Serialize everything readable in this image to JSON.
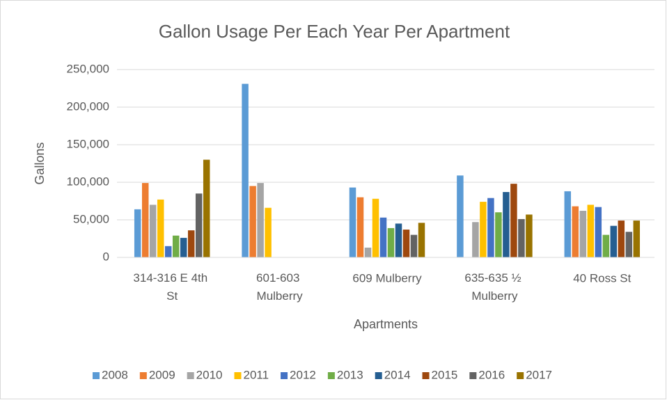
{
  "chart_data": {
    "type": "bar",
    "title": "Gallon Usage Per Each Year Per Apartment",
    "x_label": "Apartments",
    "y_label": "Gallons",
    "categories": [
      "314-316 E 4th St",
      "601-603 Mulberry",
      "609 Mulberry",
      "635-635 ½ Mulberry",
      "40 Ross St"
    ],
    "series": [
      {
        "name": "2008",
        "color": "#5B9BD5",
        "values": [
          64000,
          231000,
          93000,
          109000,
          88000
        ]
      },
      {
        "name": "2009",
        "color": "#ED7D31",
        "values": [
          99000,
          95000,
          80000,
          null,
          68000
        ]
      },
      {
        "name": "2010",
        "color": "#A5A5A5",
        "values": [
          70000,
          99000,
          13000,
          47000,
          62000
        ]
      },
      {
        "name": "2011",
        "color": "#FFC000",
        "values": [
          77000,
          66000,
          78000,
          74000,
          70000
        ]
      },
      {
        "name": "2012",
        "color": "#4472C4",
        "values": [
          15000,
          null,
          53000,
          79000,
          67000
        ]
      },
      {
        "name": "2013",
        "color": "#70AD47",
        "values": [
          29000,
          null,
          39000,
          60000,
          30000
        ]
      },
      {
        "name": "2014",
        "color": "#255E91",
        "values": [
          26000,
          null,
          45000,
          87000,
          42000
        ]
      },
      {
        "name": "2015",
        "color": "#9E480E",
        "values": [
          36000,
          null,
          37000,
          98000,
          49000
        ]
      },
      {
        "name": "2016",
        "color": "#636363",
        "values": [
          85000,
          null,
          30000,
          51000,
          34000
        ]
      },
      {
        "name": "2017",
        "color": "#997300",
        "values": [
          130000,
          null,
          46000,
          57000,
          49000
        ]
      }
    ],
    "ylim": [
      0,
      250000
    ],
    "yticks": [
      0,
      {
        "value": 50000,
        "label": "50,000"
      },
      {
        "value": 100000,
        "label": "100,000"
      },
      {
        "value": 150000,
        "label": "150,000"
      },
      {
        "value": 200000,
        "label": "200,000"
      },
      {
        "value": 250000,
        "label": "250,000"
      }
    ],
    "grid": true,
    "legend": "bottom"
  }
}
